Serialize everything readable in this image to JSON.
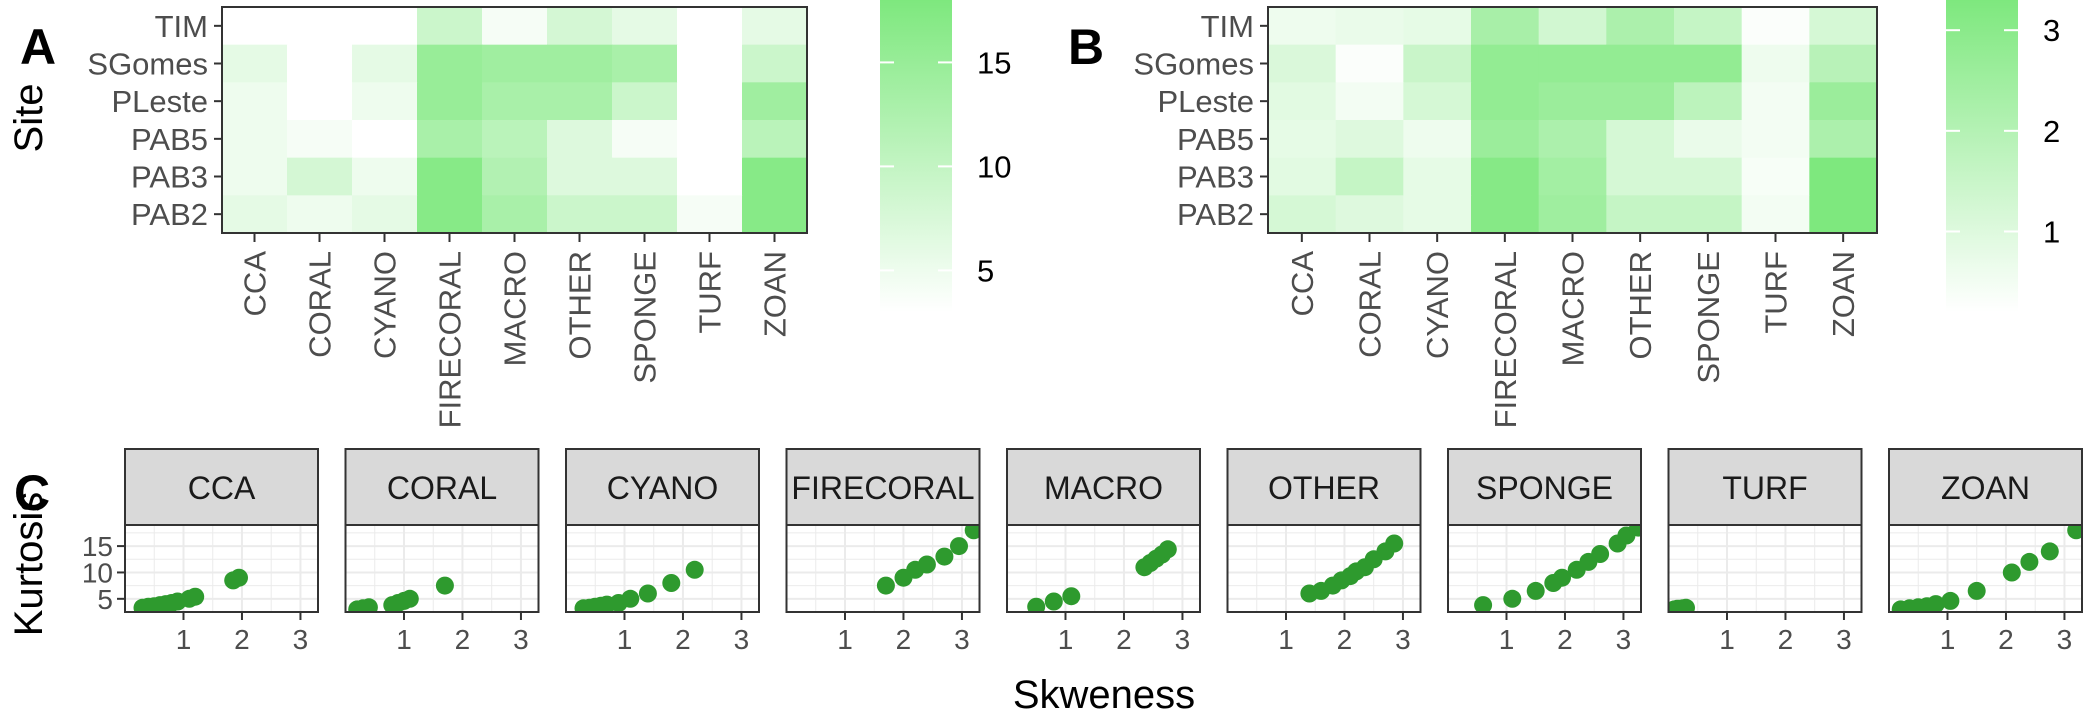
{
  "chart_data": [
    {
      "panel_label": "A",
      "type": "heatmap",
      "ylabel": "Site",
      "rows": [
        "TIM",
        "SGomes",
        "PLeste",
        "PAB5",
        "PAB3",
        "PAB2"
      ],
      "columns": [
        "CCA",
        "CORAL",
        "CYANO",
        "FIRECORAL",
        "MACRO",
        "OTHER",
        "SPONGE",
        "TURF",
        "ZOAN"
      ],
      "values": [
        [
          3,
          3,
          3,
          9,
          4,
          8,
          6,
          3,
          6
        ],
        [
          6,
          3,
          6,
          15,
          14,
          14,
          13,
          3,
          9
        ],
        [
          5,
          3,
          5,
          15,
          13,
          13,
          9,
          3,
          14
        ],
        [
          5,
          4,
          3,
          13,
          11,
          7,
          4,
          3,
          11
        ],
        [
          5,
          8,
          5,
          17,
          12,
          7,
          7,
          3,
          17
        ],
        [
          6,
          5,
          6,
          17,
          13,
          9,
          9,
          4,
          17
        ]
      ],
      "legend": {
        "ticks": [
          5,
          10,
          15
        ],
        "range": [
          3,
          18
        ],
        "color_low": "#ffffff",
        "color_high": "#7ee87e"
      }
    },
    {
      "panel_label": "B",
      "type": "heatmap",
      "ylabel": "",
      "rows": [
        "TIM",
        "SGomes",
        "PLeste",
        "PAB5",
        "PAB3",
        "PAB2"
      ],
      "columns": [
        "CCA",
        "CORAL",
        "CYANO",
        "FIRECORAL",
        "MACRO",
        "OTHER",
        "SPONGE",
        "TURF",
        "ZOAN"
      ],
      "values": [
        [
          0.6,
          0.7,
          0.8,
          2.3,
          1.3,
          2.2,
          1.6,
          0.3,
          1.2
        ],
        [
          1.1,
          0.3,
          1.5,
          2.8,
          2.8,
          2.8,
          2.8,
          0.6,
          1.9
        ],
        [
          0.9,
          0.5,
          1.2,
          2.8,
          2.6,
          2.6,
          1.8,
          0.5,
          2.6
        ],
        [
          0.8,
          1.0,
          0.6,
          2.6,
          2.2,
          1.2,
          0.7,
          0.5,
          2.2
        ],
        [
          0.9,
          1.6,
          0.8,
          3.1,
          2.4,
          1.2,
          1.2,
          0.4,
          3.3
        ],
        [
          1.2,
          1.0,
          0.8,
          3.1,
          2.5,
          1.6,
          1.6,
          0.5,
          3.3
        ]
      ],
      "legend": {
        "ticks": [
          1,
          2,
          3
        ],
        "range": [
          0.2,
          3.3
        ],
        "color_low": "#ffffff",
        "color_high": "#7ee87e"
      }
    },
    {
      "panel_label": "C",
      "type": "scatter",
      "xlabel": "Skweness",
      "ylabel": "Kurtosis",
      "xlim": [
        0,
        3.3
      ],
      "ylim": [
        2.5,
        19
      ],
      "xticks": [
        1,
        2,
        3
      ],
      "yticks": [
        5,
        10,
        15
      ],
      "point_color": "#2e9a2e",
      "facets": [
        {
          "name": "CCA",
          "x": [
            0.3,
            0.4,
            0.5,
            0.6,
            0.7,
            0.8,
            0.9,
            1.1,
            1.2,
            1.85,
            1.95
          ],
          "y": [
            3.3,
            3.5,
            3.6,
            3.8,
            4.0,
            4.2,
            4.5,
            5.0,
            5.4,
            8.5,
            9.0
          ]
        },
        {
          "name": "CORAL",
          "x": [
            0.2,
            0.3,
            0.4,
            0.8,
            0.9,
            1.0,
            1.1,
            1.7
          ],
          "y": [
            3.0,
            3.2,
            3.4,
            3.8,
            4.2,
            4.6,
            5.0,
            7.5
          ]
        },
        {
          "name": "CYANO",
          "x": [
            0.3,
            0.4,
            0.5,
            0.6,
            0.7,
            0.9,
            1.1,
            1.4,
            1.8,
            2.2
          ],
          "y": [
            3.2,
            3.3,
            3.5,
            3.7,
            3.9,
            4.2,
            5.0,
            6.0,
            8.0,
            10.5
          ]
        },
        {
          "name": "FIRECORAL",
          "x": [
            1.7,
            2.0,
            2.2,
            2.4,
            2.7,
            2.95,
            3.2
          ],
          "y": [
            7.5,
            9.0,
            10.5,
            11.5,
            13.0,
            15.0,
            18.0
          ]
        },
        {
          "name": "MACRO",
          "x": [
            0.5,
            0.8,
            1.1,
            2.35,
            2.45,
            2.55,
            2.65,
            2.75
          ],
          "y": [
            3.5,
            4.5,
            5.5,
            11.0,
            11.8,
            12.6,
            13.4,
            14.4
          ]
        },
        {
          "name": "OTHER",
          "x": [
            1.4,
            1.6,
            1.8,
            1.95,
            2.1,
            2.2,
            2.35,
            2.5,
            2.7,
            2.85
          ],
          "y": [
            6.0,
            6.5,
            7.5,
            8.5,
            9.3,
            10.2,
            11.0,
            12.5,
            14.0,
            15.5
          ]
        },
        {
          "name": "SPONGE",
          "x": [
            0.6,
            1.1,
            1.5,
            1.8,
            1.95,
            2.2,
            2.4,
            2.6,
            2.9,
            3.05,
            3.25
          ],
          "y": [
            3.8,
            5.0,
            6.5,
            8.0,
            9.0,
            10.5,
            12.0,
            13.5,
            15.5,
            17.0,
            18.5
          ]
        },
        {
          "name": "TURF",
          "x": [
            0.1,
            0.15,
            0.2,
            0.25,
            0.3
          ],
          "y": [
            3.0,
            3.1,
            3.1,
            3.2,
            3.3
          ]
        },
        {
          "name": "ZOAN",
          "x": [
            0.2,
            0.35,
            0.5,
            0.65,
            0.8,
            1.05,
            1.5,
            2.1,
            2.4,
            2.75,
            3.2
          ],
          "y": [
            3.0,
            3.2,
            3.4,
            3.6,
            4.0,
            4.6,
            6.5,
            10.0,
            12.0,
            14.0,
            18.0
          ]
        }
      ]
    }
  ]
}
